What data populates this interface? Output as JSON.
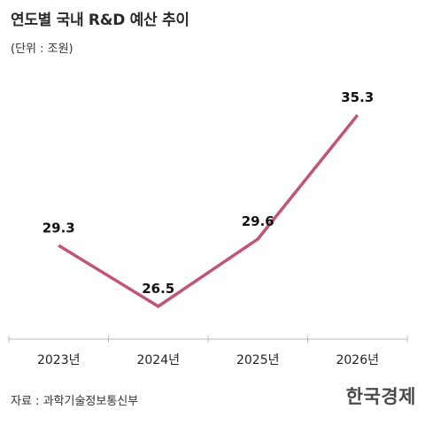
{
  "header": {
    "title": "연도별 국내 R&D 예산 추이",
    "unit": "(단위 : 조원)"
  },
  "footer": {
    "source": "자료 : 과학기술정보통신부",
    "logo": "한국경제"
  },
  "colors": {
    "line": "#c0547a",
    "axis": "#bbbbbb"
  },
  "chart_data": {
    "type": "line",
    "categories": [
      "2023년",
      "2024년",
      "2025년",
      "2026년"
    ],
    "series": [
      {
        "values": [
          29.3,
          26.5,
          29.6,
          35.3
        ]
      }
    ],
    "data_labels": [
      "29.3",
      "26.5",
      "29.6",
      "35.3"
    ],
    "title": "연도별 국내 R&D 예산 추이",
    "ylabel": "(단위 : 조원)",
    "xlabel": "",
    "grid": false,
    "legend": "none"
  }
}
